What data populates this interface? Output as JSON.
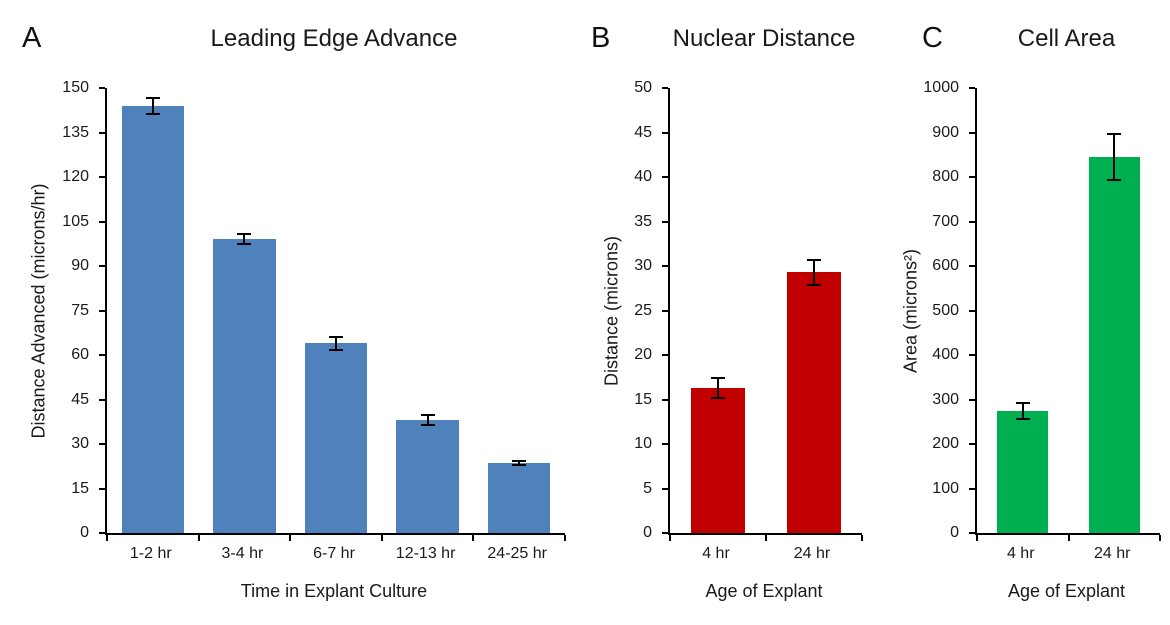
{
  "figure": {
    "background": "#FFFFFF"
  },
  "chart_data": [
    {
      "type": "bar",
      "panel_label": "A",
      "title": "Leading Edge Advance",
      "xlabel": "Time in Explant Culture",
      "ylabel": "Distance Advanced (microns/hr)",
      "categories": [
        "1-2 hr",
        "3-4 hr",
        "6-7 hr",
        "12-13 hr",
        "24-25 hr"
      ],
      "values": [
        144,
        99,
        64,
        38,
        23.5
      ],
      "errors": [
        3,
        2,
        2.5,
        2,
        1
      ],
      "ylim": [
        0,
        150
      ],
      "ytick_step": 15,
      "bar_color": "#4F81BD",
      "bar_width_ratio": 0.68,
      "grid": false,
      "legend": "none"
    },
    {
      "type": "bar",
      "panel_label": "B",
      "title": "Nuclear Distance",
      "xlabel": "Age of Explant",
      "ylabel": "Distance (microns)",
      "categories": [
        "4 hr",
        "24 hr"
      ],
      "values": [
        16.3,
        29.3
      ],
      "errors": [
        1.2,
        1.5
      ],
      "ylim": [
        0,
        50
      ],
      "ytick_step": 5,
      "bar_color": "#C00000",
      "bar_width_ratio": 0.56,
      "grid": false,
      "legend": "none"
    },
    {
      "type": "bar",
      "panel_label": "C",
      "title": "Cell Area",
      "xlabel": "Age of Explant",
      "ylabel": "Area (microns²)",
      "categories": [
        "4 hr",
        "24 hr"
      ],
      "values": [
        275,
        845
      ],
      "errors": [
        20,
        55
      ],
      "ylim": [
        0,
        1000
      ],
      "ytick_step": 100,
      "bar_color": "#00B050",
      "bar_width_ratio": 0.56,
      "grid": false,
      "legend": "none"
    }
  ]
}
